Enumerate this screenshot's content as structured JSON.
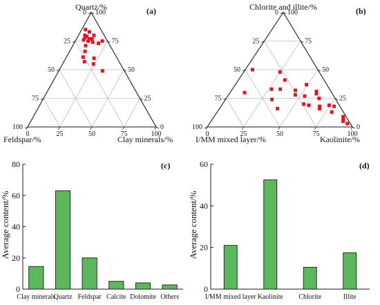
{
  "colors": {
    "marker": "#e8141d",
    "bar": "#5cb85c",
    "bar_edge": "#1a1a1a",
    "grid": "#bdbdbd",
    "axis": "#1a1a1a"
  },
  "chart_data": [
    {
      "type": "scatter",
      "subtype": "ternary",
      "panel": "(a)",
      "top_label": "Quartz/%",
      "left_label": "Feldspar/%",
      "right_label": "Clay minerals/%",
      "ticks": [
        0,
        25,
        50,
        75,
        100
      ],
      "grid": true,
      "points": [
        {
          "quartz": 85,
          "feldspar": 12,
          "clay": 3
        },
        {
          "quartz": 83,
          "feldspar": 10,
          "clay": 7
        },
        {
          "quartz": 80,
          "feldspar": 15,
          "clay": 5
        },
        {
          "quartz": 80,
          "feldspar": 8,
          "clay": 12
        },
        {
          "quartz": 79,
          "feldspar": 14,
          "clay": 7
        },
        {
          "quartz": 78,
          "feldspar": 16,
          "clay": 6
        },
        {
          "quartz": 77,
          "feldspar": 13,
          "clay": 10
        },
        {
          "quartz": 77,
          "feldspar": 11,
          "clay": 12
        },
        {
          "quartz": 76,
          "feldspar": 18,
          "clay": 6
        },
        {
          "quartz": 75,
          "feldspar": 15,
          "clay": 10
        },
        {
          "quartz": 75,
          "feldspar": 4,
          "clay": 21
        },
        {
          "quartz": 74,
          "feldspar": 12,
          "clay": 14
        },
        {
          "quartz": 73,
          "feldspar": 8,
          "clay": 19
        },
        {
          "quartz": 71,
          "feldspar": 19,
          "clay": 10
        },
        {
          "quartz": 66,
          "feldspar": 22,
          "clay": 12
        },
        {
          "quartz": 61,
          "feldspar": 26,
          "clay": 13
        },
        {
          "quartz": 60,
          "feldspar": 18,
          "clay": 22
        },
        {
          "quartz": 57,
          "feldspar": 27,
          "clay": 16
        },
        {
          "quartz": 55,
          "feldspar": 21,
          "clay": 24
        },
        {
          "quartz": 49,
          "feldspar": 17,
          "clay": 34
        }
      ]
    },
    {
      "type": "scatter",
      "subtype": "ternary",
      "panel": "(b)",
      "top_label": "Chlorite and illite/%",
      "left_label": "I/MM mixed layer/%",
      "right_label": "Kaolinite/%",
      "ticks": [
        0,
        25,
        50,
        75,
        100
      ],
      "grid": true,
      "points": [
        {
          "chlorite_illite": 50,
          "imm": 45,
          "kaolinite": 5
        },
        {
          "chlorite_illite": 48,
          "imm": 27,
          "kaolinite": 25
        },
        {
          "chlorite_illite": 41,
          "imm": 27,
          "kaolinite": 32
        },
        {
          "chlorite_illite": 37,
          "imm": 14,
          "kaolinite": 49
        },
        {
          "chlorite_illite": 33,
          "imm": 40,
          "kaolinite": 27
        },
        {
          "chlorite_illite": 33,
          "imm": 34,
          "kaolinite": 33
        },
        {
          "chlorite_illite": 32,
          "imm": 24,
          "kaolinite": 44
        },
        {
          "chlorite_illite": 31,
          "imm": 10,
          "kaolinite": 59
        },
        {
          "chlorite_illite": 30,
          "imm": 60,
          "kaolinite": 10
        },
        {
          "chlorite_illite": 29,
          "imm": 11,
          "kaolinite": 60
        },
        {
          "chlorite_illite": 28,
          "imm": 26,
          "kaolinite": 46
        },
        {
          "chlorite_illite": 27,
          "imm": 20,
          "kaolinite": 53
        },
        {
          "chlorite_illite": 25,
          "imm": 11,
          "kaolinite": 64
        },
        {
          "chlorite_illite": 24,
          "imm": 44,
          "kaolinite": 32
        },
        {
          "chlorite_illite": 20,
          "imm": 24,
          "kaolinite": 56
        },
        {
          "chlorite_illite": 19,
          "imm": 21,
          "kaolinite": 60
        },
        {
          "chlorite_illite": 19,
          "imm": 7,
          "kaolinite": 74
        },
        {
          "chlorite_illite": 18,
          "imm": 14,
          "kaolinite": 68
        },
        {
          "chlorite_illite": 18,
          "imm": 4,
          "kaolinite": 78
        },
        {
          "chlorite_illite": 16,
          "imm": 44,
          "kaolinite": 40
        },
        {
          "chlorite_illite": 16,
          "imm": 15,
          "kaolinite": 69
        },
        {
          "chlorite_illite": 13,
          "imm": 8,
          "kaolinite": 79
        },
        {
          "chlorite_illite": 9,
          "imm": 2,
          "kaolinite": 89
        },
        {
          "chlorite_illite": 7,
          "imm": 3,
          "kaolinite": 90
        },
        {
          "chlorite_illite": 5,
          "imm": 4,
          "kaolinite": 91
        },
        {
          "chlorite_illite": 3,
          "imm": 2,
          "kaolinite": 95
        }
      ]
    },
    {
      "type": "bar",
      "panel": "(c)",
      "categories": [
        "Clay minerals",
        "Quartz",
        "Feldspar",
        "Calcite",
        "Dolomite",
        "Others"
      ],
      "values": [
        14.5,
        63,
        20,
        5,
        4,
        2.7
      ],
      "ylabel": "Average content/%",
      "ylim": [
        0,
        80
      ],
      "yticks": [
        0,
        20,
        40,
        60,
        80
      ],
      "grid": false
    },
    {
      "type": "bar",
      "panel": "(d)",
      "categories": [
        "I/MM mixed layer",
        "Kaolinite",
        "Chlorite",
        "Illite"
      ],
      "values": [
        21,
        52.5,
        10.5,
        17.5
      ],
      "ylabel": "Average content/%",
      "ylim": [
        0,
        60
      ],
      "yticks": [
        0,
        20,
        40,
        60
      ],
      "grid": false
    }
  ]
}
